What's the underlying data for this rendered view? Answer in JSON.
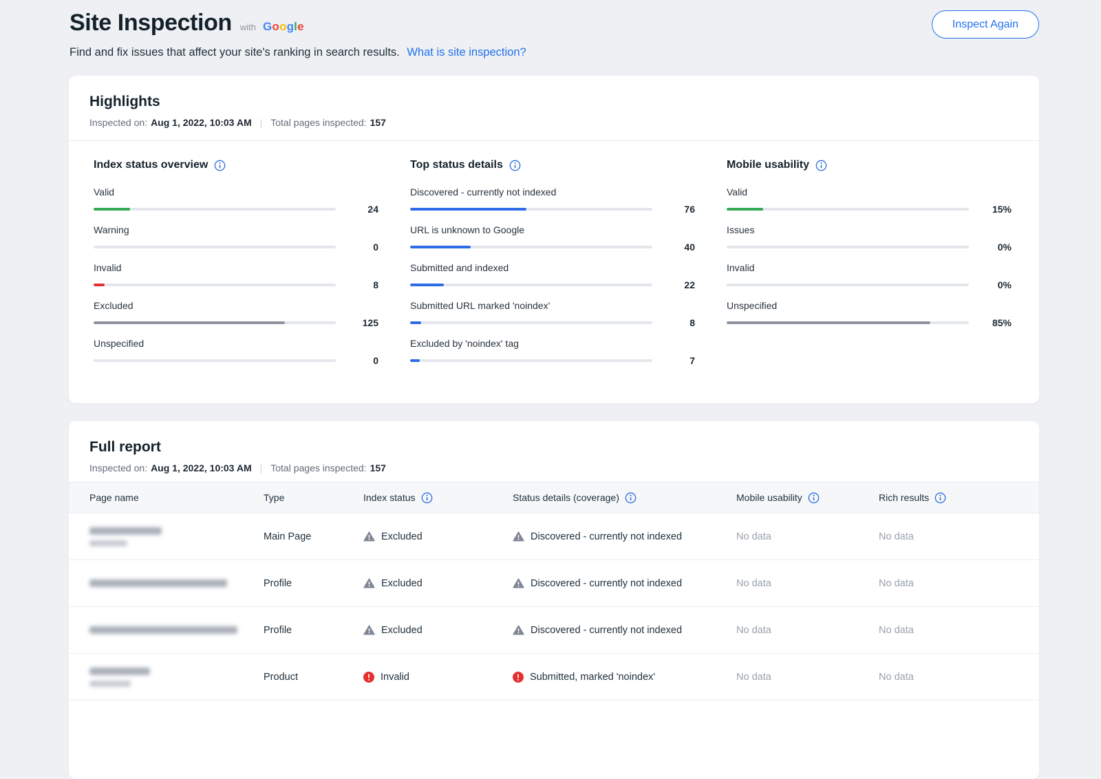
{
  "header": {
    "title": "Site Inspection",
    "with_label": "with",
    "google_letters": [
      "G",
      "o",
      "o",
      "g",
      "l",
      "e"
    ],
    "subtitle": "Find and fix issues that affect your site's ranking in search results.",
    "link_label": "What is site inspection?",
    "inspect_again_label": "Inspect Again"
  },
  "highlights": {
    "title": "Highlights",
    "inspected_on_label": "Inspected on:",
    "inspected_on_value": "Aug 1, 2022, 10:03 AM",
    "total_label": "Total pages inspected:",
    "total_value": "157",
    "columns": [
      {
        "title": "Index status overview",
        "items": [
          {
            "label": "Valid",
            "value": "24",
            "fill": 15,
            "color": "#34a853"
          },
          {
            "label": "Warning",
            "value": "0",
            "fill": 0,
            "color": "#f5a623"
          },
          {
            "label": "Invalid",
            "value": "8",
            "fill": 4.5,
            "color": "#e53030"
          },
          {
            "label": "Excluded",
            "value": "125",
            "fill": 79,
            "color": "#8d939f"
          },
          {
            "label": "Unspecified",
            "value": "0",
            "fill": 0,
            "color": "#8d939f"
          }
        ]
      },
      {
        "title": "Top status details",
        "items": [
          {
            "label": "Discovered - currently not indexed",
            "value": "76",
            "fill": 48,
            "color": "#2e6be6"
          },
          {
            "label": "URL is unknown to Google",
            "value": "40",
            "fill": 25,
            "color": "#2e6be6"
          },
          {
            "label": "Submitted and indexed",
            "value": "22",
            "fill": 14,
            "color": "#2e6be6"
          },
          {
            "label": "Submitted URL marked 'noindex'",
            "value": "8",
            "fill": 4.5,
            "color": "#2e6be6"
          },
          {
            "label": "Excluded by 'noindex' tag",
            "value": "7",
            "fill": 4,
            "color": "#2e6be6"
          }
        ]
      },
      {
        "title": "Mobile usability",
        "items": [
          {
            "label": "Valid",
            "value": "15%",
            "fill": 15,
            "color": "#34a853"
          },
          {
            "label": "Issues",
            "value": "0%",
            "fill": 0,
            "color": "#e53030"
          },
          {
            "label": "Invalid",
            "value": "0%",
            "fill": 0,
            "color": "#e53030"
          },
          {
            "label": "Unspecified",
            "value": "85%",
            "fill": 84,
            "color": "#8d939f"
          }
        ]
      }
    ]
  },
  "report": {
    "title": "Full report",
    "inspected_on_label": "Inspected on:",
    "inspected_on_value": "Aug 1, 2022, 10:03 AM",
    "total_label": "Total pages inspected:",
    "total_value": "157",
    "headers": [
      "Page name",
      "Type",
      "Index status",
      "Status details (coverage)",
      "Mobile usability",
      "Rich results"
    ],
    "rows": [
      {
        "type": "Main Page",
        "index_status": "Excluded",
        "status_details": "Discovered - currently not indexed",
        "mobile_usability": "No data",
        "rich_results": "No data"
      },
      {
        "type": "Profile",
        "index_status": "Excluded",
        "status_details": "Discovered - currently not indexed",
        "mobile_usability": "No data",
        "rich_results": "No data"
      },
      {
        "type": "Profile",
        "index_status": "Excluded",
        "status_details": "Discovered - currently not indexed",
        "mobile_usability": "No data",
        "rich_results": "No data"
      },
      {
        "type": "Product",
        "index_status": "Invalid",
        "status_details": "Submitted, marked 'noindex'",
        "mobile_usability": "No data",
        "rich_results": "No data"
      }
    ]
  }
}
